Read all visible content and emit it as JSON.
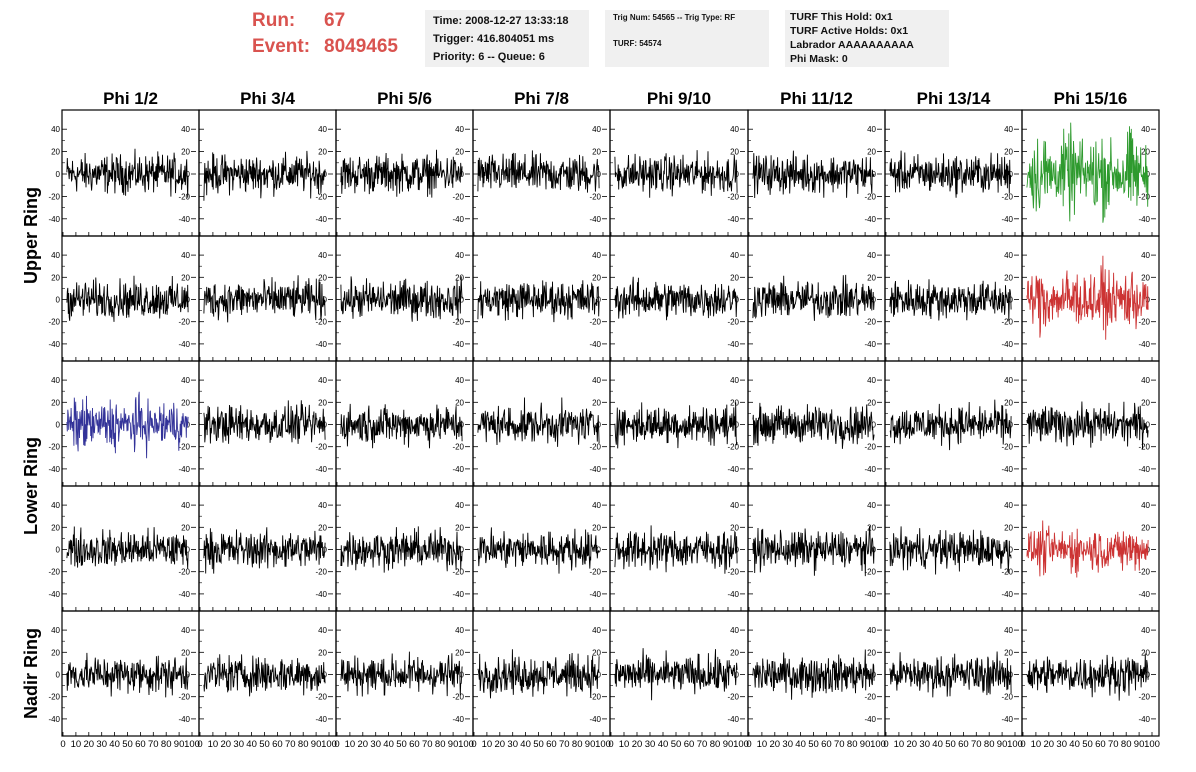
{
  "header": {
    "run_label": "Run:",
    "run_value": "67",
    "event_label": "Event:",
    "event_value": "8049465",
    "time_info": [
      "Time: 2008-12-27 13:33:18",
      "Trigger: 416.804051 ms",
      "Priority: 6 -- Queue: 6"
    ],
    "trig_info": [
      "Trig Num: 54565 -- Trig Type: RF",
      "TURF: 54574"
    ],
    "turf_info": [
      "TURF This Hold: 0x1",
      "TURF Active Holds: 0x1",
      "Labrador AAAAAAAAAA",
      "Phi Mask: 0"
    ]
  },
  "chart_data": {
    "type": "line",
    "columns": [
      "Phi 1/2",
      "Phi 3/4",
      "Phi 5/6",
      "Phi 7/8",
      "Phi 9/10",
      "Phi 11/12",
      "Phi 13/14",
      "Phi 15/16"
    ],
    "ring_labels": [
      "Upper Ring",
      "Lower Ring",
      "Nadir Ring"
    ],
    "rows": 5,
    "ring_row_spans": [
      [
        0,
        1
      ],
      [
        2,
        3
      ],
      [
        4,
        4
      ]
    ],
    "xlim": [
      0,
      100
    ],
    "ylim": [
      -50,
      50
    ],
    "x_tick_labels": [
      "0",
      "10",
      "20",
      "30",
      "40",
      "50",
      "60",
      "70",
      "80",
      "90",
      "100"
    ],
    "y_tick_labels": [
      "40",
      "20",
      "0",
      "-20",
      "-40"
    ],
    "y_tick_values": [
      40,
      20,
      0,
      -20,
      -40
    ],
    "default_color": "#000000",
    "waveform_amplitude": 16,
    "highlighted_panels": [
      {
        "row": 0,
        "col": 7,
        "color": "#2e9a2e",
        "amplitude": 28
      },
      {
        "row": 1,
        "col": 7,
        "color": "#cc3333",
        "amplitude": 22
      },
      {
        "row": 2,
        "col": 0,
        "color": "#333399",
        "amplitude": 18
      },
      {
        "row": 3,
        "col": 7,
        "color": "#cc3333",
        "amplitude": 16
      }
    ]
  }
}
